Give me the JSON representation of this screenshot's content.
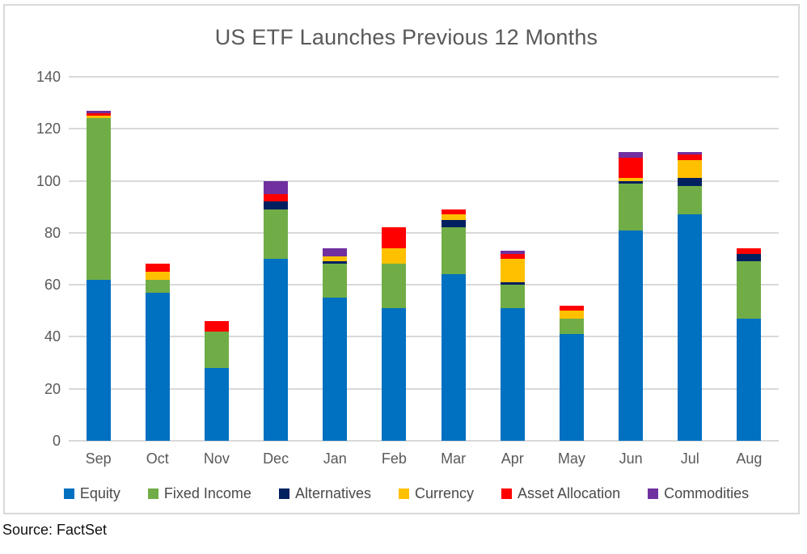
{
  "title": "US ETF Launches Previous 12 Months",
  "source_note": "Source: FactSet",
  "colors": {
    "equity": "#0070C0",
    "fixed_income": "#70AD47",
    "alternatives": "#002060",
    "currency": "#FFC000",
    "asset_allocation": "#FF0000",
    "commodities": "#7030A0",
    "gridline": "#D9D9D9",
    "axis_text": "#595959",
    "title_text": "#595959"
  },
  "chart_data": {
    "type": "bar",
    "stacked": true,
    "title": "US ETF Launches Previous 12 Months",
    "xlabel": "",
    "ylabel": "",
    "ylim": [
      0,
      140
    ],
    "ytick_step": 20,
    "grid": true,
    "legend_position": "bottom",
    "categories": [
      "Sep",
      "Oct",
      "Nov",
      "Dec",
      "Jan",
      "Feb",
      "Mar",
      "Apr",
      "May",
      "Jun",
      "Jul",
      "Aug"
    ],
    "series": [
      {
        "name": "Equity",
        "color": "#0070C0",
        "values": [
          62,
          57,
          28,
          70,
          55,
          51,
          64,
          51,
          41,
          81,
          87,
          47
        ]
      },
      {
        "name": "Fixed Income",
        "color": "#70AD47",
        "values": [
          62,
          5,
          14,
          19,
          13,
          17,
          18,
          9,
          6,
          18,
          11,
          22
        ]
      },
      {
        "name": "Alternatives",
        "color": "#002060",
        "values": [
          0,
          0,
          0,
          3,
          1,
          0,
          3,
          1,
          0,
          1,
          3,
          3
        ]
      },
      {
        "name": "Currency",
        "color": "#FFC000",
        "values": [
          1,
          3,
          0,
          0,
          2,
          6,
          2,
          9,
          3,
          1,
          7,
          0
        ]
      },
      {
        "name": "Asset Allocation",
        "color": "#FF0000",
        "values": [
          1,
          3,
          4,
          3,
          0,
          8,
          2,
          2,
          2,
          8,
          2,
          2
        ]
      },
      {
        "name": "Commodities",
        "color": "#7030A0",
        "values": [
          1,
          0,
          0,
          5,
          3,
          0,
          0,
          1,
          0,
          2,
          1,
          0
        ]
      }
    ],
    "totals": [
      127,
      68,
      46,
      100,
      74,
      82,
      89,
      73,
      52,
      111,
      111,
      74
    ]
  }
}
